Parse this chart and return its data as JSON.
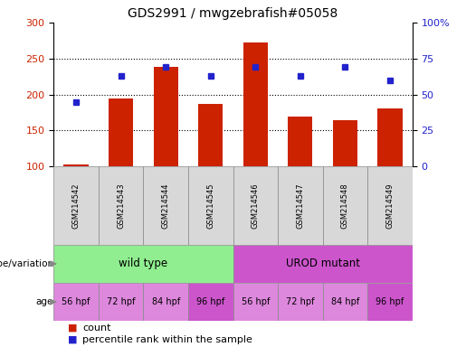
{
  "title": "GDS2991 / mwgzebrafish#05058",
  "samples": [
    "GSM214542",
    "GSM214543",
    "GSM214544",
    "GSM214545",
    "GSM214546",
    "GSM214547",
    "GSM214548",
    "GSM214549"
  ],
  "counts": [
    103,
    194,
    238,
    187,
    272,
    170,
    165,
    181
  ],
  "percentile_ranks": [
    45,
    63,
    69,
    63,
    69,
    63,
    69,
    60
  ],
  "count_baseline": 100,
  "ylim_left": [
    100,
    300
  ],
  "ylim_right": [
    0,
    100
  ],
  "yticks_left": [
    100,
    150,
    200,
    250,
    300
  ],
  "yticks_right": [
    0,
    25,
    50,
    75,
    100
  ],
  "yticklabels_right": [
    "0",
    "25",
    "50",
    "75",
    "100%"
  ],
  "bar_color": "#cc2200",
  "dot_color": "#2222cc",
  "genotype_groups": [
    {
      "label": "wild type",
      "start": 0,
      "end": 4,
      "color": "#90ee90"
    },
    {
      "label": "UROD mutant",
      "start": 4,
      "end": 8,
      "color": "#cc55cc"
    }
  ],
  "age_labels": [
    "56 hpf",
    "72 hpf",
    "84 hpf",
    "96 hpf",
    "56 hpf",
    "72 hpf",
    "84 hpf",
    "96 hpf"
  ],
  "age_colors": [
    "#dd88dd",
    "#dd88dd",
    "#dd88dd",
    "#cc55cc",
    "#dd88dd",
    "#dd88dd",
    "#dd88dd",
    "#cc55cc"
  ],
  "genotype_label": "genotype/variation",
  "age_label": "age",
  "legend_count_label": "count",
  "legend_pct_label": "percentile rank within the sample",
  "tick_label_color_left": "#cc2200",
  "tick_label_color_right": "#2222cc",
  "grid_lines": [
    150,
    200,
    250
  ],
  "bar_width": 0.55
}
